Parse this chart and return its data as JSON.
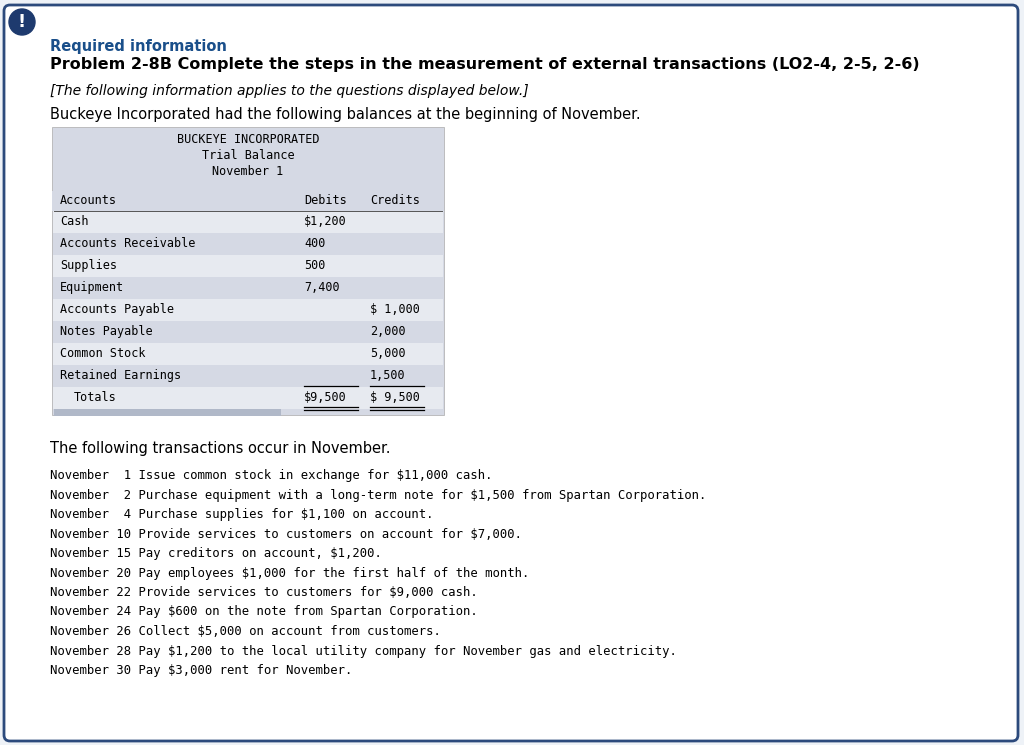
{
  "bg_color": "#eef2f7",
  "border_color": "#2c4a7c",
  "warning_icon_color": "#d9422a",
  "required_info_color": "#1a4f8a",
  "required_info_text": "Required information",
  "problem_title": "Problem 2-8B Complete the steps in the measurement of external transactions (LO2-4, 2-5, 2-6)",
  "italic_text": "[The following information applies to the questions displayed below.]",
  "intro_text": "Buckeye Incorporated had the following balances at the beginning of November.",
  "table_header1": "BUCKEYE INCORPORATED",
  "table_header2": "Trial Balance",
  "table_header3": "November 1",
  "table_bg_color": "#d5d9e4",
  "table_rows": [
    [
      "Cash",
      "$1,200",
      ""
    ],
    [
      "Accounts Receivable",
      "400",
      ""
    ],
    [
      "Supplies",
      "500",
      ""
    ],
    [
      "Equipment",
      "7,400",
      ""
    ],
    [
      "Accounts Payable",
      "",
      "$ 1,000"
    ],
    [
      "Notes Payable",
      "",
      "2,000"
    ],
    [
      "Common Stock",
      "",
      "5,000"
    ],
    [
      "Retained Earnings",
      "",
      "1,500"
    ],
    [
      "Totals",
      "$9,500",
      "$ 9,500"
    ]
  ],
  "transactions_intro": "The following transactions occur in November.",
  "transactions": [
    "November  1 Issue common stock in exchange for $11,000 cash.",
    "November  2 Purchase equipment with a long-term note for $1,500 from Spartan Corporation.",
    "November  4 Purchase supplies for $1,100 on account.",
    "November 10 Provide services to customers on account for $7,000.",
    "November 15 Pay creditors on account, $1,200.",
    "November 20 Pay employees $1,000 for the first half of the month.",
    "November 22 Provide services to customers for $9,000 cash.",
    "November 24 Pay $600 on the note from Spartan Corporation.",
    "November 26 Collect $5,000 on account from customers.",
    "November 28 Pay $1,200 to the local utility company for November gas and electricity.",
    "November 30 Pay $3,000 rent for November."
  ]
}
